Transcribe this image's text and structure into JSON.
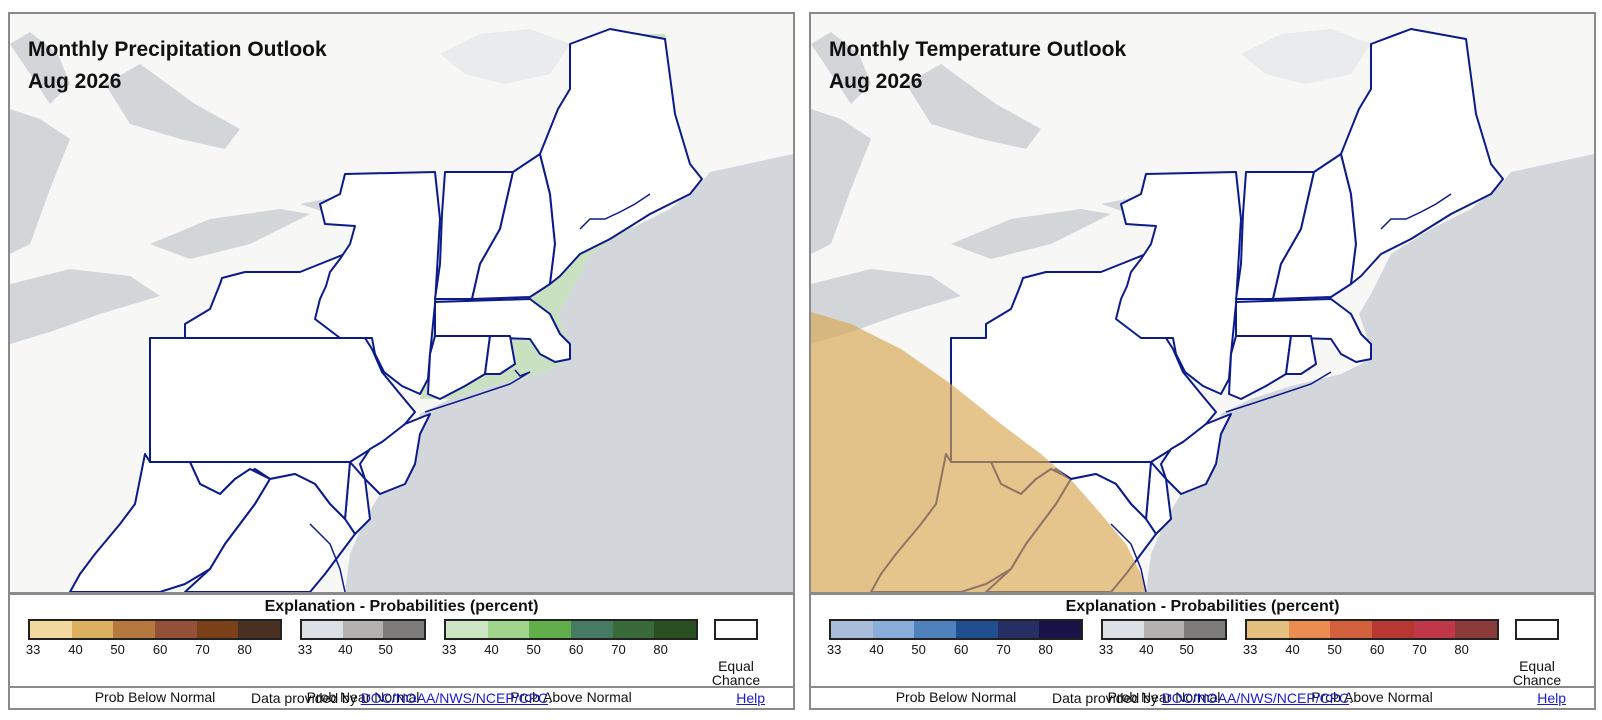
{
  "colors": {
    "land_background": "#f7f7f6",
    "lakes": "#d2d6d9",
    "ocean": "#d3d7db",
    "state_lines": "#0b1b8a",
    "above_normal_precip_shade": "#c7dfbe",
    "above_normal_temp_shade": "#e2c38a"
  },
  "panels": [
    {
      "id": "precip",
      "title": "Monthly Precipitation Outlook",
      "period": "Aug 2026",
      "shaded_category": "Prob Above Normal",
      "shaded_range": "33-40",
      "legend_heading": "Explanation - Probabilities (percent)",
      "scales": [
        {
          "label": "Prob Below Normal",
          "colors": [
            "#f1d9a0",
            "#dbb060",
            "#b5783f",
            "#95503a",
            "#7a4018",
            "#4a3022"
          ],
          "ticks": [
            "33",
            "40",
            "50",
            "60",
            "70",
            "80"
          ]
        },
        {
          "label": "Prob Near Normal",
          "colors": [
            "#dbe1e4",
            "#b4b1b1",
            "#7e7b7b"
          ],
          "ticks": [
            "33",
            "40",
            "50"
          ]
        },
        {
          "label": "Prob Above Normal",
          "colors": [
            "#cde6c3",
            "#a1d48c",
            "#61ae4b",
            "#467a62",
            "#3a6a3a",
            "#2a5022"
          ],
          "ticks": [
            "33",
            "40",
            "50",
            "60",
            "70",
            "80"
          ]
        }
      ],
      "equal_chance_label": [
        "Equal",
        "Chance"
      ],
      "footer": {
        "prefix": "Data provided by",
        "link_text": "DOC/NOAA/NWS/NCEP/CPC",
        "suffix": ".",
        "help": "Help"
      }
    },
    {
      "id": "temp",
      "title": "Monthly Temperature Outlook",
      "period": "Aug 2026",
      "shaded_category": "Prob Above Normal",
      "shaded_range": "33-40",
      "legend_heading": "Explanation - Probabilities (percent)",
      "scales": [
        {
          "label": "Prob Below Normal",
          "colors": [
            "#a9bddb",
            "#8aaedc",
            "#4f81bd",
            "#1f4f8f",
            "#262f63",
            "#181346"
          ],
          "ticks": [
            "33",
            "40",
            "50",
            "60",
            "70",
            "80"
          ]
        },
        {
          "label": "Prob Near Normal",
          "colors": [
            "#dbe1e4",
            "#b4b1b1",
            "#7e7b7b"
          ],
          "ticks": [
            "33",
            "40",
            "50"
          ]
        },
        {
          "label": "Prob Above Normal",
          "colors": [
            "#e5c17f",
            "#eb8c50",
            "#d3603d",
            "#b73832",
            "#c0374a",
            "#8a3a38"
          ],
          "ticks": [
            "33",
            "40",
            "50",
            "60",
            "70",
            "80"
          ]
        }
      ],
      "equal_chance_label": [
        "Equal",
        "Chance"
      ],
      "footer": {
        "prefix": "Data provided by",
        "link_text": "DOC/NOAA/NWS/NCEP/CPC",
        "suffix": ".",
        "help": "Help"
      }
    }
  ]
}
